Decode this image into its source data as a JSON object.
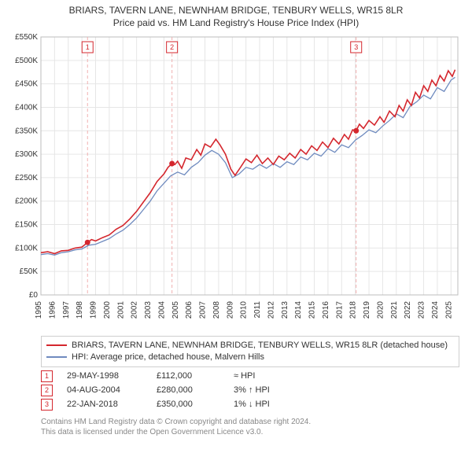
{
  "title_line1": "BRIARS, TAVERN LANE, NEWNHAM BRIDGE, TENBURY WELLS, WR15 8LR",
  "title_line2": "Price paid vs. HM Land Registry's House Price Index (HPI)",
  "chart": {
    "type": "line",
    "background_color": "#ffffff",
    "grid_color": "#e6e6e6",
    "axis_color": "#bdbdbd",
    "x_years": [
      1995,
      1996,
      1997,
      1998,
      1999,
      2000,
      2001,
      2002,
      2003,
      2004,
      2005,
      2006,
      2007,
      2008,
      2009,
      2010,
      2011,
      2012,
      2013,
      2014,
      2015,
      2016,
      2017,
      2018,
      2019,
      2020,
      2021,
      2022,
      2023,
      2024,
      2025
    ],
    "y_ticks": [
      0,
      50000,
      100000,
      150000,
      200000,
      250000,
      300000,
      350000,
      400000,
      450000,
      500000,
      550000
    ],
    "y_tick_labels": [
      "£0",
      "£50K",
      "£100K",
      "£150K",
      "£200K",
      "£250K",
      "£300K",
      "£350K",
      "£400K",
      "£450K",
      "£500K",
      "£550K"
    ],
    "y_min": 0,
    "y_max": 550000,
    "x_min": 1995,
    "x_max": 2025.5,
    "tick_fontsize": 10,
    "series": {
      "red": {
        "color": "#d4272e",
        "width": 1.6,
        "label": "BRIARS, TAVERN LANE, NEWNHAM BRIDGE, TENBURY WELLS, WR15 8LR (detached house)",
        "points": [
          [
            1995.0,
            90000
          ],
          [
            1995.5,
            92000
          ],
          [
            1996.0,
            88000
          ],
          [
            1996.5,
            94000
          ],
          [
            1997.0,
            95000
          ],
          [
            1997.5,
            100000
          ],
          [
            1998.0,
            102000
          ],
          [
            1998.41,
            112000
          ],
          [
            1998.7,
            118000
          ],
          [
            1999.0,
            115000
          ],
          [
            1999.5,
            122000
          ],
          [
            2000.0,
            128000
          ],
          [
            2000.5,
            140000
          ],
          [
            2001.0,
            148000
          ],
          [
            2001.5,
            162000
          ],
          [
            2002.0,
            178000
          ],
          [
            2002.5,
            198000
          ],
          [
            2003.0,
            218000
          ],
          [
            2003.5,
            242000
          ],
          [
            2004.0,
            258000
          ],
          [
            2004.3,
            272000
          ],
          [
            2004.59,
            280000
          ],
          [
            2004.8,
            278000
          ],
          [
            2005.0,
            285000
          ],
          [
            2005.3,
            270000
          ],
          [
            2005.6,
            292000
          ],
          [
            2006.0,
            288000
          ],
          [
            2006.4,
            310000
          ],
          [
            2006.7,
            298000
          ],
          [
            2007.0,
            322000
          ],
          [
            2007.4,
            315000
          ],
          [
            2007.8,
            332000
          ],
          [
            2008.1,
            320000
          ],
          [
            2008.5,
            300000
          ],
          [
            2008.9,
            268000
          ],
          [
            2009.2,
            255000
          ],
          [
            2009.6,
            272000
          ],
          [
            2010.0,
            290000
          ],
          [
            2010.4,
            282000
          ],
          [
            2010.8,
            298000
          ],
          [
            2011.2,
            280000
          ],
          [
            2011.6,
            292000
          ],
          [
            2012.0,
            278000
          ],
          [
            2012.4,
            296000
          ],
          [
            2012.8,
            288000
          ],
          [
            2013.2,
            302000
          ],
          [
            2013.6,
            292000
          ],
          [
            2014.0,
            310000
          ],
          [
            2014.4,
            300000
          ],
          [
            2014.8,
            318000
          ],
          [
            2015.2,
            308000
          ],
          [
            2015.6,
            326000
          ],
          [
            2016.0,
            314000
          ],
          [
            2016.4,
            334000
          ],
          [
            2016.8,
            322000
          ],
          [
            2017.2,
            342000
          ],
          [
            2017.5,
            332000
          ],
          [
            2017.8,
            352000
          ],
          [
            2018.06,
            350000
          ],
          [
            2018.3,
            364000
          ],
          [
            2018.6,
            355000
          ],
          [
            2019.0,
            372000
          ],
          [
            2019.4,
            362000
          ],
          [
            2019.8,
            380000
          ],
          [
            2020.1,
            368000
          ],
          [
            2020.5,
            392000
          ],
          [
            2020.9,
            380000
          ],
          [
            2021.2,
            404000
          ],
          [
            2021.5,
            392000
          ],
          [
            2021.8,
            416000
          ],
          [
            2022.1,
            404000
          ],
          [
            2022.4,
            432000
          ],
          [
            2022.7,
            420000
          ],
          [
            2023.0,
            446000
          ],
          [
            2023.3,
            434000
          ],
          [
            2023.6,
            458000
          ],
          [
            2023.9,
            446000
          ],
          [
            2024.2,
            468000
          ],
          [
            2024.5,
            456000
          ],
          [
            2024.8,
            478000
          ],
          [
            2025.1,
            466000
          ],
          [
            2025.3,
            480000
          ]
        ]
      },
      "blue": {
        "color": "#6f8bbf",
        "width": 1.3,
        "label": "HPI: Average price, detached house, Malvern Hills",
        "points": [
          [
            1995.0,
            86000
          ],
          [
            1995.5,
            88000
          ],
          [
            1996.0,
            85000
          ],
          [
            1996.5,
            90000
          ],
          [
            1997.0,
            92000
          ],
          [
            1997.5,
            96000
          ],
          [
            1998.0,
            98000
          ],
          [
            1998.5,
            106000
          ],
          [
            1999.0,
            108000
          ],
          [
            1999.5,
            114000
          ],
          [
            2000.0,
            120000
          ],
          [
            2000.5,
            130000
          ],
          [
            2001.0,
            138000
          ],
          [
            2001.5,
            150000
          ],
          [
            2002.0,
            164000
          ],
          [
            2002.5,
            182000
          ],
          [
            2003.0,
            200000
          ],
          [
            2003.5,
            222000
          ],
          [
            2004.0,
            238000
          ],
          [
            2004.5,
            254000
          ],
          [
            2005.0,
            262000
          ],
          [
            2005.5,
            256000
          ],
          [
            2006.0,
            272000
          ],
          [
            2006.5,
            282000
          ],
          [
            2007.0,
            298000
          ],
          [
            2007.5,
            308000
          ],
          [
            2008.0,
            300000
          ],
          [
            2008.5,
            282000
          ],
          [
            2009.0,
            250000
          ],
          [
            2009.5,
            258000
          ],
          [
            2010.0,
            272000
          ],
          [
            2010.5,
            268000
          ],
          [
            2011.0,
            278000
          ],
          [
            2011.5,
            270000
          ],
          [
            2012.0,
            280000
          ],
          [
            2012.5,
            272000
          ],
          [
            2013.0,
            284000
          ],
          [
            2013.5,
            278000
          ],
          [
            2014.0,
            294000
          ],
          [
            2014.5,
            288000
          ],
          [
            2015.0,
            302000
          ],
          [
            2015.5,
            296000
          ],
          [
            2016.0,
            312000
          ],
          [
            2016.5,
            304000
          ],
          [
            2017.0,
            320000
          ],
          [
            2017.5,
            314000
          ],
          [
            2018.0,
            330000
          ],
          [
            2018.5,
            340000
          ],
          [
            2019.0,
            352000
          ],
          [
            2019.5,
            346000
          ],
          [
            2020.0,
            360000
          ],
          [
            2020.5,
            372000
          ],
          [
            2021.0,
            386000
          ],
          [
            2021.5,
            378000
          ],
          [
            2022.0,
            402000
          ],
          [
            2022.5,
            412000
          ],
          [
            2023.0,
            426000
          ],
          [
            2023.5,
            418000
          ],
          [
            2024.0,
            442000
          ],
          [
            2024.5,
            434000
          ],
          [
            2025.0,
            458000
          ],
          [
            2025.3,
            464000
          ]
        ]
      }
    },
    "sale_markers": [
      {
        "num": "1",
        "year": 1998.41,
        "value": 112000,
        "stroke": "#d4272e"
      },
      {
        "num": "2",
        "year": 2004.59,
        "value": 280000,
        "stroke": "#d4272e"
      },
      {
        "num": "3",
        "year": 2018.06,
        "value": 350000,
        "stroke": "#d4272e"
      }
    ],
    "marker_dot_color": "#d4272e",
    "vdash_color": "#f0b0b0"
  },
  "legend": {
    "red_color": "#d4272e",
    "blue_color": "#6f8bbf"
  },
  "events": [
    {
      "num": "1",
      "date": "29-MAY-1998",
      "price": "£112,000",
      "delta": "≈ HPI",
      "stroke": "#d4272e"
    },
    {
      "num": "2",
      "date": "04-AUG-2004",
      "price": "£280,000",
      "delta": "3% ↑ HPI",
      "stroke": "#d4272e"
    },
    {
      "num": "3",
      "date": "22-JAN-2018",
      "price": "£350,000",
      "delta": "1% ↓ HPI",
      "stroke": "#d4272e"
    }
  ],
  "attribution_line1": "Contains HM Land Registry data © Crown copyright and database right 2024.",
  "attribution_line2": "This data is licensed under the Open Government Licence v3.0."
}
